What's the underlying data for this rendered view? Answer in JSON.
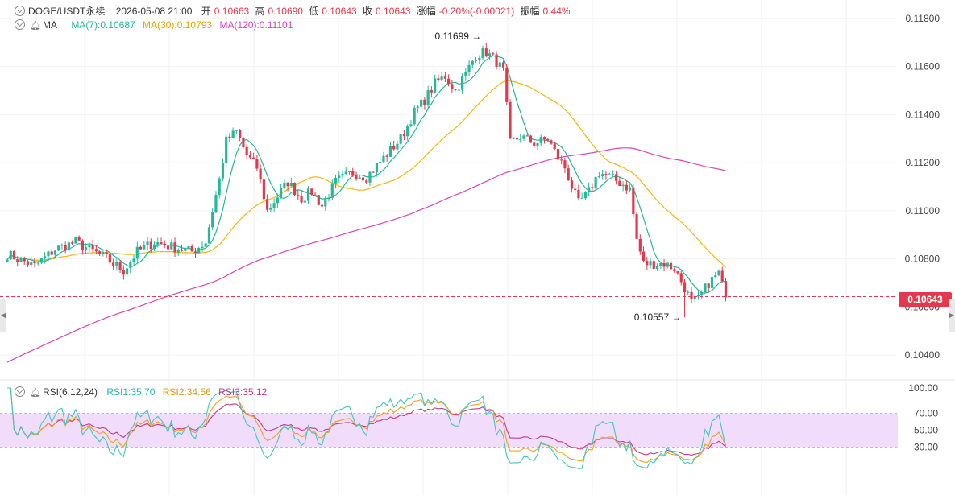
{
  "header": {
    "symbol": "DOGE/USDT永续",
    "datetime": "2026-05-08 21:00",
    "open_label": "开",
    "open": "0.10663",
    "high_label": "高",
    "high": "0.10690",
    "low_label": "低",
    "low": "0.10643",
    "close_label": "收",
    "close": "0.10643",
    "change_label": "涨幅",
    "change": "-0.20%(-0.00021)",
    "amplitude_label": "振幅",
    "amplitude": "0.44%"
  },
  "ma_legend": {
    "label": "MA",
    "ma7": "MA(7):0.10687",
    "ma30": "MA(30):0.10793",
    "ma120": "MA(120):0.11101"
  },
  "rsi_legend": {
    "label": "RSI(6,12,24)",
    "rsi1": "RSI1:35.70",
    "rsi2": "RSI2:34.56",
    "rsi3": "RSI3:35.12"
  },
  "colors": {
    "up": "#26b89a",
    "down": "#e23a4c",
    "ma7": "#26b89a",
    "ma30": "#f0b90b",
    "ma120": "#d946b8",
    "rsi1": "#40c7c0",
    "rsi2": "#f0a020",
    "rsi3": "#c23c8a",
    "rsi_band": "#f1dcfb"
  },
  "chart_data": [
    {
      "type": "candlestick",
      "y_axis": {
        "ticks": [
          0.118,
          0.116,
          0.114,
          0.112,
          0.11,
          0.108,
          0.106,
          0.104
        ],
        "ylim": [
          0.1033,
          0.1185
        ],
        "tick_format": "0.00000"
      },
      "annotations": [
        {
          "label": "0.11699",
          "value": 0.11699
        },
        {
          "label": "0.10557",
          "value": 0.10557
        }
      ],
      "current_price": {
        "label": "0.10643",
        "value": 0.10643
      },
      "anchors": [
        [
          0,
          0.1082
        ],
        [
          8,
          0.1077
        ],
        [
          14,
          0.1084
        ],
        [
          20,
          0.1087
        ],
        [
          28,
          0.1081
        ],
        [
          34,
          0.1075
        ],
        [
          38,
          0.1083
        ],
        [
          43,
          0.1087
        ],
        [
          48,
          0.1085
        ],
        [
          54,
          0.1083
        ],
        [
          58,
          0.1087
        ],
        [
          62,
          0.1113
        ],
        [
          64,
          0.1129
        ],
        [
          67,
          0.1133
        ],
        [
          70,
          0.1123
        ],
        [
          73,
          0.1118
        ],
        [
          76,
          0.11
        ],
        [
          79,
          0.1106
        ],
        [
          82,
          0.1112
        ],
        [
          86,
          0.1105
        ],
        [
          89,
          0.1108
        ],
        [
          92,
          0.1102
        ],
        [
          96,
          0.1112
        ],
        [
          101,
          0.1116
        ],
        [
          105,
          0.1114
        ],
        [
          110,
          0.1122
        ],
        [
          115,
          0.113
        ],
        [
          119,
          0.1141
        ],
        [
          122,
          0.1146
        ],
        [
          125,
          0.1153
        ],
        [
          128,
          0.1156
        ],
        [
          131,
          0.115
        ],
        [
          134,
          0.1157
        ],
        [
          137,
          0.1165
        ],
        [
          140,
          0.1166
        ],
        [
          143,
          0.1162
        ],
        [
          145,
          0.1158
        ],
        [
          147,
          0.1128
        ],
        [
          150,
          0.1131
        ],
        [
          154,
          0.1128
        ],
        [
          158,
          0.113
        ],
        [
          161,
          0.1122
        ],
        [
          163,
          0.1118
        ],
        [
          165,
          0.111
        ],
        [
          167,
          0.1103
        ],
        [
          170,
          0.1108
        ],
        [
          173,
          0.1116
        ],
        [
          176,
          0.1114
        ],
        [
          180,
          0.1111
        ],
        [
          182,
          0.1109
        ],
        [
          184,
          0.1088
        ],
        [
          186,
          0.1078
        ],
        [
          189,
          0.1078
        ],
        [
          192,
          0.1078
        ],
        [
          195,
          0.1076
        ],
        [
          198,
          0.1068
        ],
        [
          200,
          0.1062
        ],
        [
          202,
          0.1063
        ],
        [
          205,
          0.107
        ],
        [
          208,
          0.1074
        ],
        [
          210,
          0.1064
        ]
      ],
      "ma120_start": 0.1037
    },
    {
      "type": "line",
      "series": [
        {
          "name": "RSI1"
        },
        {
          "name": "RSI2"
        },
        {
          "name": "RSI3"
        }
      ],
      "y_axis": {
        "ticks": [
          100,
          70,
          50,
          30
        ],
        "ylim": [
          0,
          100
        ],
        "tick_format": "0.00"
      },
      "band": [
        30,
        70
      ]
    }
  ]
}
